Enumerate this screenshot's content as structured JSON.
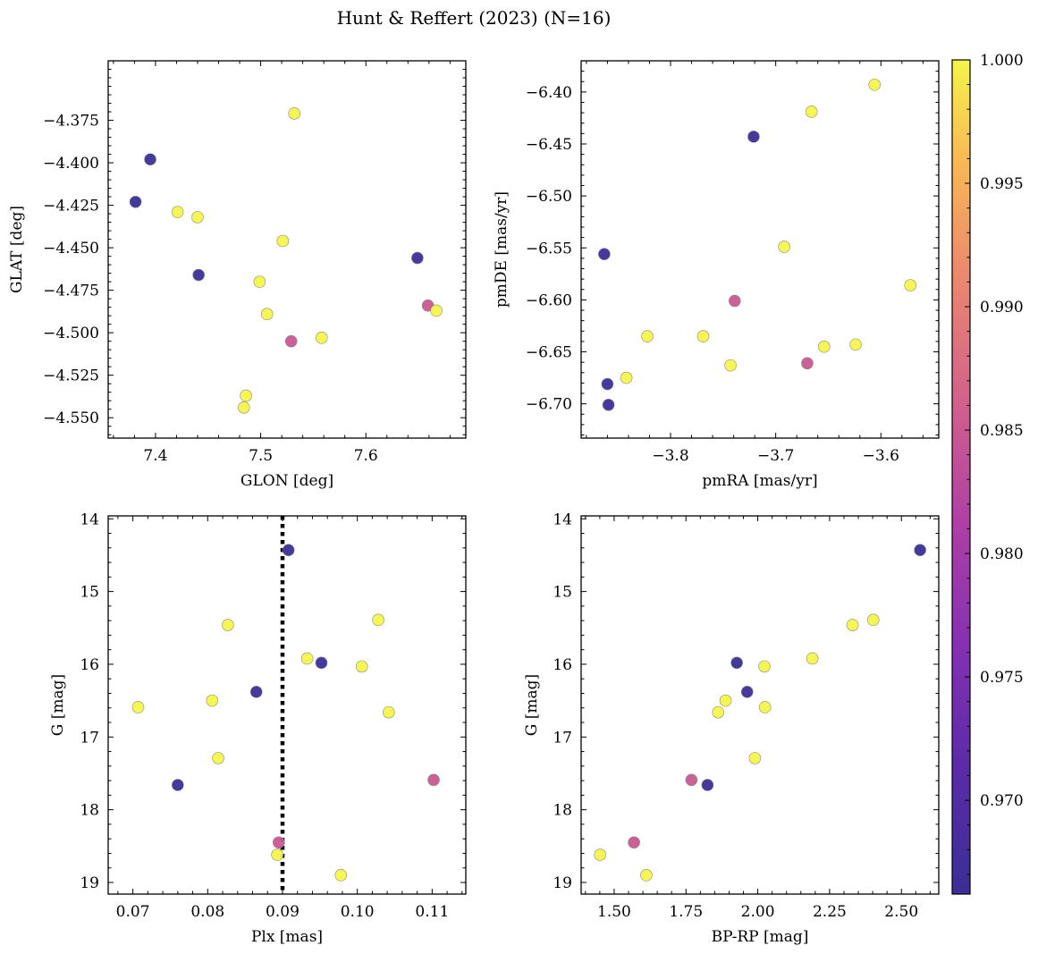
{
  "figure": {
    "title": "Hunt & Reffert (2023) (N=16)"
  },
  "colormap": {
    "name": "plasma",
    "vmin": 0.9662,
    "vmax": 1.0,
    "ticks": [
      0.97,
      0.975,
      0.98,
      0.985,
      0.99,
      0.995,
      1.0
    ],
    "tick_labels": [
      "0.970",
      "0.975",
      "0.980",
      "0.985",
      "0.990",
      "0.995",
      "1.000"
    ]
  },
  "chart_data": [
    {
      "id": "glon-glat",
      "type": "scatter",
      "xlabel": "GLON [deg]",
      "ylabel": "GLAT [deg]",
      "xlim": [
        7.355,
        7.695
      ],
      "ylim": [
        -4.562,
        -4.34
      ],
      "ytick_values": [
        -4.375,
        -4.4,
        -4.425,
        -4.45,
        -4.475,
        -4.5,
        -4.525,
        -4.55
      ],
      "ytick_labels": [
        "−4.375",
        "−4.400",
        "−4.425",
        "−4.450",
        "−4.475",
        "−4.500",
        "−4.525",
        "−4.550"
      ],
      "xtick_values": [
        7.4,
        7.5,
        7.6
      ],
      "xtick_labels": [
        "7.4",
        "7.5",
        "7.6"
      ],
      "invert_y": false,
      "points": [
        {
          "x": 7.532,
          "y": -4.371,
          "c": 1.0
        },
        {
          "x": 7.395,
          "y": -4.398,
          "c": 0.966
        },
        {
          "x": 7.381,
          "y": -4.423,
          "c": 0.966
        },
        {
          "x": 7.421,
          "y": -4.429,
          "c": 1.0
        },
        {
          "x": 7.44,
          "y": -4.432,
          "c": 1.0
        },
        {
          "x": 7.521,
          "y": -4.446,
          "c": 1.0
        },
        {
          "x": 7.649,
          "y": -4.456,
          "c": 0.966
        },
        {
          "x": 7.441,
          "y": -4.466,
          "c": 0.966
        },
        {
          "x": 7.499,
          "y": -4.47,
          "c": 1.0
        },
        {
          "x": 7.659,
          "y": -4.484,
          "c": 0.985
        },
        {
          "x": 7.667,
          "y": -4.487,
          "c": 1.0
        },
        {
          "x": 7.506,
          "y": -4.489,
          "c": 1.0
        },
        {
          "x": 7.529,
          "y": -4.505,
          "c": 0.985
        },
        {
          "x": 7.558,
          "y": -4.503,
          "c": 1.0
        },
        {
          "x": 7.486,
          "y": -4.537,
          "c": 1.0
        },
        {
          "x": 7.484,
          "y": -4.544,
          "c": 1.0
        }
      ]
    },
    {
      "id": "pmra-pmde",
      "type": "scatter",
      "xlabel": "pmRA [mas/yr]",
      "ylabel": "pmDE [mas/yr]",
      "xlim": [
        -3.885,
        -3.545
      ],
      "ylim": [
        -6.733,
        -6.37
      ],
      "ytick_values": [
        -6.4,
        -6.45,
        -6.5,
        -6.55,
        -6.6,
        -6.65,
        -6.7
      ],
      "ytick_labels": [
        "−6.40",
        "−6.45",
        "−6.50",
        "−6.55",
        "−6.60",
        "−6.65",
        "−6.70"
      ],
      "xtick_values": [
        -3.8,
        -3.7,
        -3.6
      ],
      "xtick_labels": [
        "−3.8",
        "−3.7",
        "−3.6"
      ],
      "invert_y": false,
      "points": [
        {
          "x": -3.606,
          "y": -6.393,
          "c": 1.0
        },
        {
          "x": -3.666,
          "y": -6.419,
          "c": 1.0
        },
        {
          "x": -3.721,
          "y": -6.443,
          "c": 0.966
        },
        {
          "x": -3.863,
          "y": -6.556,
          "c": 0.966
        },
        {
          "x": -3.692,
          "y": -6.549,
          "c": 1.0
        },
        {
          "x": -3.572,
          "y": -6.586,
          "c": 1.0
        },
        {
          "x": -3.739,
          "y": -6.601,
          "c": 0.985
        },
        {
          "x": -3.822,
          "y": -6.635,
          "c": 1.0
        },
        {
          "x": -3.769,
          "y": -6.635,
          "c": 1.0
        },
        {
          "x": -3.654,
          "y": -6.645,
          "c": 1.0
        },
        {
          "x": -3.624,
          "y": -6.643,
          "c": 1.0
        },
        {
          "x": -3.743,
          "y": -6.663,
          "c": 1.0
        },
        {
          "x": -3.67,
          "y": -6.661,
          "c": 0.985
        },
        {
          "x": -3.842,
          "y": -6.675,
          "c": 1.0
        },
        {
          "x": -3.86,
          "y": -6.681,
          "c": 0.966
        },
        {
          "x": -3.859,
          "y": -6.701,
          "c": 0.966
        }
      ]
    },
    {
      "id": "plx-g",
      "type": "scatter",
      "xlabel": "Plx [mas]",
      "ylabel": "G [mag]",
      "xlim": [
        0.0667,
        0.1145
      ],
      "ylim": [
        13.96,
        19.16
      ],
      "ytick_values": [
        14,
        15,
        16,
        17,
        18,
        19
      ],
      "ytick_labels": [
        "14",
        "15",
        "16",
        "17",
        "18",
        "19"
      ],
      "xtick_values": [
        0.07,
        0.08,
        0.09,
        0.1,
        0.11
      ],
      "xtick_labels": [
        "0.07",
        "0.08",
        "0.09",
        "0.10",
        "0.11"
      ],
      "invert_y": true,
      "vline": 0.09,
      "points": [
        {
          "x": 0.0908,
          "y": 14.43,
          "c": 0.966
        },
        {
          "x": 0.0827,
          "y": 15.46,
          "c": 1.0
        },
        {
          "x": 0.1028,
          "y": 15.39,
          "c": 1.0
        },
        {
          "x": 0.0933,
          "y": 15.92,
          "c": 1.0
        },
        {
          "x": 0.0952,
          "y": 15.98,
          "c": 0.966
        },
        {
          "x": 0.1006,
          "y": 16.03,
          "c": 1.0
        },
        {
          "x": 0.0865,
          "y": 16.38,
          "c": 0.966
        },
        {
          "x": 0.0806,
          "y": 16.5,
          "c": 1.0
        },
        {
          "x": 0.0707,
          "y": 16.59,
          "c": 1.0
        },
        {
          "x": 0.1042,
          "y": 16.66,
          "c": 1.0
        },
        {
          "x": 0.0814,
          "y": 17.29,
          "c": 1.0
        },
        {
          "x": 0.1102,
          "y": 17.59,
          "c": 0.985
        },
        {
          "x": 0.076,
          "y": 17.66,
          "c": 0.966
        },
        {
          "x": 0.0895,
          "y": 18.45,
          "c": 0.985
        },
        {
          "x": 0.0893,
          "y": 18.62,
          "c": 1.0
        },
        {
          "x": 0.0978,
          "y": 18.9,
          "c": 1.0
        }
      ]
    },
    {
      "id": "bprp-g",
      "type": "scatter",
      "xlabel": "BP-RP [mag]",
      "ylabel": "G [mag]",
      "xlim": [
        1.385,
        2.63
      ],
      "ylim": [
        13.96,
        19.16
      ],
      "ytick_values": [
        14,
        15,
        16,
        17,
        18,
        19
      ],
      "ytick_labels": [
        "14",
        "15",
        "16",
        "17",
        "18",
        "19"
      ],
      "xtick_values": [
        1.5,
        1.75,
        2.0,
        2.25,
        2.5
      ],
      "xtick_labels": [
        "1.50",
        "1.75",
        "2.00",
        "2.25",
        "2.50"
      ],
      "invert_y": true,
      "points": [
        {
          "x": 2.565,
          "y": 14.43,
          "c": 0.966
        },
        {
          "x": 2.402,
          "y": 15.39,
          "c": 1.0
        },
        {
          "x": 2.33,
          "y": 15.46,
          "c": 1.0
        },
        {
          "x": 2.19,
          "y": 15.92,
          "c": 1.0
        },
        {
          "x": 1.927,
          "y": 15.98,
          "c": 0.966
        },
        {
          "x": 2.023,
          "y": 16.03,
          "c": 1.0
        },
        {
          "x": 1.963,
          "y": 16.38,
          "c": 0.966
        },
        {
          "x": 1.888,
          "y": 16.5,
          "c": 1.0
        },
        {
          "x": 2.025,
          "y": 16.59,
          "c": 1.0
        },
        {
          "x": 1.862,
          "y": 16.66,
          "c": 1.0
        },
        {
          "x": 1.99,
          "y": 17.29,
          "c": 1.0
        },
        {
          "x": 1.769,
          "y": 17.59,
          "c": 0.985
        },
        {
          "x": 1.825,
          "y": 17.66,
          "c": 0.966
        },
        {
          "x": 1.569,
          "y": 18.45,
          "c": 0.985
        },
        {
          "x": 1.451,
          "y": 18.62,
          "c": 1.0
        },
        {
          "x": 1.612,
          "y": 18.9,
          "c": 1.0
        }
      ]
    }
  ]
}
